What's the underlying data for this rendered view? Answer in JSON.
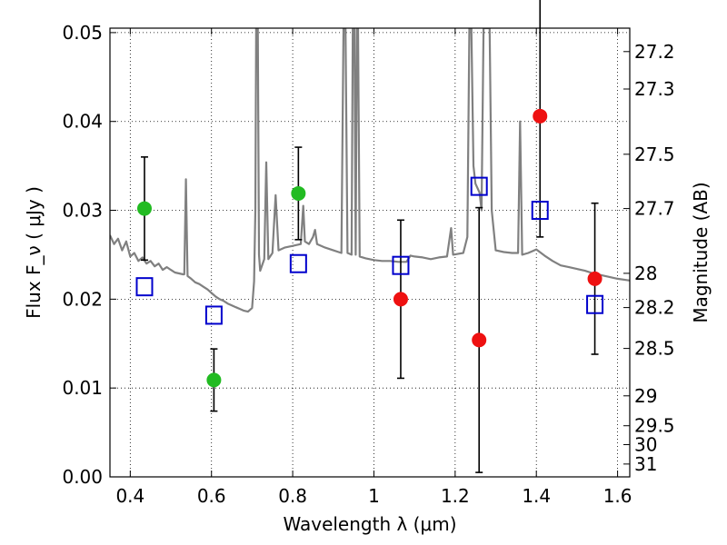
{
  "chart_data": {
    "type": "scatter",
    "title": "",
    "xlabel": "Wavelength  λ (μm)",
    "ylabel": "Flux  F_ν  ( μJy )",
    "y2label": "Magnitude (AB)",
    "xlim": [
      0.35,
      1.63
    ],
    "ylim": [
      0.0,
      0.0505
    ],
    "grid": true,
    "x_ticks": [
      0.4,
      0.6,
      0.8,
      1.0,
      1.2,
      1.4,
      1.6
    ],
    "x_tick_labels": [
      "0.4",
      "0.6",
      "0.8",
      "1",
      "1.2",
      "1.4",
      "1.6"
    ],
    "y_ticks": [
      0.0,
      0.01,
      0.02,
      0.03,
      0.04,
      0.05
    ],
    "y_tick_labels": [
      "0.00",
      "0.01",
      "0.02",
      "0.03",
      "0.04",
      "0.05"
    ],
    "magnitude_ticks": [
      27.2,
      27.3,
      27.5,
      27.7,
      28,
      28.2,
      28.5,
      29,
      29.5,
      30,
      31
    ],
    "magnitude_tick_labels": [
      "27.2",
      "27.3",
      "27.5",
      "27.7",
      "28",
      "28.2",
      "28.5",
      "29",
      "29.5",
      "30",
      "31"
    ],
    "series": [
      {
        "marker": "circle",
        "color": "#22bb22",
        "points": [
          {
            "x": 0.435,
            "y": 0.0302,
            "yerr": 0.0058
          },
          {
            "x": 0.606,
            "y": 0.0109,
            "yerr": 0.0035
          },
          {
            "x": 0.814,
            "y": 0.0319,
            "yerr": 0.0052
          }
        ]
      },
      {
        "marker": "circle",
        "color": "#ee1111",
        "points": [
          {
            "x": 1.066,
            "y": 0.02,
            "yerr": 0.0089
          },
          {
            "x": 1.259,
            "y": 0.0154,
            "yerr": 0.0149
          },
          {
            "x": 1.409,
            "y": 0.0406,
            "yerr": 0.0136
          },
          {
            "x": 1.544,
            "y": 0.0223,
            "yerr": 0.0085
          }
        ]
      },
      {
        "marker": "open-square",
        "color": "#0000cc",
        "points": [
          {
            "x": 0.435,
            "y": 0.0214
          },
          {
            "x": 0.606,
            "y": 0.0182
          },
          {
            "x": 0.814,
            "y": 0.024
          },
          {
            "x": 1.066,
            "y": 0.0238
          },
          {
            "x": 1.259,
            "y": 0.0327
          },
          {
            "x": 1.409,
            "y": 0.03
          },
          {
            "x": 1.544,
            "y": 0.0194
          }
        ]
      },
      {
        "marker": "line",
        "color": "#808080",
        "points": [
          {
            "x": 0.35,
            "y": 0.0272
          },
          {
            "x": 0.36,
            "y": 0.0262
          },
          {
            "x": 0.37,
            "y": 0.0268
          },
          {
            "x": 0.38,
            "y": 0.0255
          },
          {
            "x": 0.39,
            "y": 0.0265
          },
          {
            "x": 0.4,
            "y": 0.0248
          },
          {
            "x": 0.41,
            "y": 0.0252
          },
          {
            "x": 0.42,
            "y": 0.0243
          },
          {
            "x": 0.43,
            "y": 0.0247
          },
          {
            "x": 0.44,
            "y": 0.024
          },
          {
            "x": 0.45,
            "y": 0.0243
          },
          {
            "x": 0.46,
            "y": 0.0237
          },
          {
            "x": 0.47,
            "y": 0.024
          },
          {
            "x": 0.48,
            "y": 0.0233
          },
          {
            "x": 0.49,
            "y": 0.0236
          },
          {
            "x": 0.5,
            "y": 0.0233
          },
          {
            "x": 0.51,
            "y": 0.023
          },
          {
            "x": 0.52,
            "y": 0.0229
          },
          {
            "x": 0.53,
            "y": 0.0228
          },
          {
            "x": 0.533,
            "y": 0.0228
          },
          {
            "x": 0.537,
            "y": 0.0335
          },
          {
            "x": 0.541,
            "y": 0.0226
          },
          {
            "x": 0.55,
            "y": 0.0223
          },
          {
            "x": 0.56,
            "y": 0.0219
          },
          {
            "x": 0.57,
            "y": 0.0217
          },
          {
            "x": 0.58,
            "y": 0.0214
          },
          {
            "x": 0.59,
            "y": 0.0211
          },
          {
            "x": 0.6,
            "y": 0.0207
          },
          {
            "x": 0.61,
            "y": 0.0203
          },
          {
            "x": 0.62,
            "y": 0.02
          },
          {
            "x": 0.63,
            "y": 0.0198
          },
          {
            "x": 0.64,
            "y": 0.0195
          },
          {
            "x": 0.65,
            "y": 0.0193
          },
          {
            "x": 0.66,
            "y": 0.0191
          },
          {
            "x": 0.67,
            "y": 0.0189
          },
          {
            "x": 0.68,
            "y": 0.0187
          },
          {
            "x": 0.69,
            "y": 0.0186
          },
          {
            "x": 0.7,
            "y": 0.019
          },
          {
            "x": 0.705,
            "y": 0.022
          },
          {
            "x": 0.708,
            "y": 0.03
          },
          {
            "x": 0.71,
            "y": 0.0505
          },
          {
            "x": 0.714,
            "y": 0.0505
          },
          {
            "x": 0.717,
            "y": 0.025
          },
          {
            "x": 0.72,
            "y": 0.0232
          },
          {
            "x": 0.73,
            "y": 0.0245
          },
          {
            "x": 0.735,
            "y": 0.0354
          },
          {
            "x": 0.74,
            "y": 0.0245
          },
          {
            "x": 0.75,
            "y": 0.0252
          },
          {
            "x": 0.758,
            "y": 0.0317
          },
          {
            "x": 0.765,
            "y": 0.0255
          },
          {
            "x": 0.78,
            "y": 0.0258
          },
          {
            "x": 0.8,
            "y": 0.026
          },
          {
            "x": 0.82,
            "y": 0.0262
          },
          {
            "x": 0.826,
            "y": 0.0305
          },
          {
            "x": 0.83,
            "y": 0.0265
          },
          {
            "x": 0.84,
            "y": 0.0262
          },
          {
            "x": 0.85,
            "y": 0.027
          },
          {
            "x": 0.855,
            "y": 0.0278
          },
          {
            "x": 0.86,
            "y": 0.0262
          },
          {
            "x": 0.88,
            "y": 0.0258
          },
          {
            "x": 0.9,
            "y": 0.0255
          },
          {
            "x": 0.92,
            "y": 0.0252
          },
          {
            "x": 0.925,
            "y": 0.0505
          },
          {
            "x": 0.93,
            "y": 0.0505
          },
          {
            "x": 0.935,
            "y": 0.0252
          },
          {
            "x": 0.945,
            "y": 0.025
          },
          {
            "x": 0.948,
            "y": 0.0505
          },
          {
            "x": 0.952,
            "y": 0.0505
          },
          {
            "x": 0.955,
            "y": 0.025
          },
          {
            "x": 0.958,
            "y": 0.0505
          },
          {
            "x": 0.961,
            "y": 0.0505
          },
          {
            "x": 0.965,
            "y": 0.0248
          },
          {
            "x": 0.98,
            "y": 0.0246
          },
          {
            "x": 1.0,
            "y": 0.0244
          },
          {
            "x": 1.02,
            "y": 0.0243
          },
          {
            "x": 1.04,
            "y": 0.0243
          },
          {
            "x": 1.06,
            "y": 0.0242
          },
          {
            "x": 1.08,
            "y": 0.0242
          },
          {
            "x": 1.09,
            "y": 0.0249
          },
          {
            "x": 1.1,
            "y": 0.0248
          },
          {
            "x": 1.12,
            "y": 0.0247
          },
          {
            "x": 1.14,
            "y": 0.0245
          },
          {
            "x": 1.16,
            "y": 0.0247
          },
          {
            "x": 1.18,
            "y": 0.0248
          },
          {
            "x": 1.19,
            "y": 0.028
          },
          {
            "x": 1.195,
            "y": 0.025
          },
          {
            "x": 1.22,
            "y": 0.0252
          },
          {
            "x": 1.23,
            "y": 0.027
          },
          {
            "x": 1.235,
            "y": 0.0505
          },
          {
            "x": 1.24,
            "y": 0.0505
          },
          {
            "x": 1.245,
            "y": 0.035
          },
          {
            "x": 1.25,
            "y": 0.033
          },
          {
            "x": 1.26,
            "y": 0.032
          },
          {
            "x": 1.265,
            "y": 0.03
          },
          {
            "x": 1.27,
            "y": 0.0505
          },
          {
            "x": 1.275,
            "y": 0.0505
          },
          {
            "x": 1.28,
            "y": 0.0505
          },
          {
            "x": 1.285,
            "y": 0.0505
          },
          {
            "x": 1.29,
            "y": 0.03
          },
          {
            "x": 1.3,
            "y": 0.0255
          },
          {
            "x": 1.32,
            "y": 0.0253
          },
          {
            "x": 1.34,
            "y": 0.0252
          },
          {
            "x": 1.355,
            "y": 0.0252
          },
          {
            "x": 1.36,
            "y": 0.04
          },
          {
            "x": 1.365,
            "y": 0.025
          },
          {
            "x": 1.38,
            "y": 0.0252
          },
          {
            "x": 1.4,
            "y": 0.0256
          },
          {
            "x": 1.42,
            "y": 0.0249
          },
          {
            "x": 1.44,
            "y": 0.0243
          },
          {
            "x": 1.46,
            "y": 0.0238
          },
          {
            "x": 1.48,
            "y": 0.0236
          },
          {
            "x": 1.5,
            "y": 0.0234
          },
          {
            "x": 1.52,
            "y": 0.0232
          },
          {
            "x": 1.54,
            "y": 0.0229
          },
          {
            "x": 1.56,
            "y": 0.0227
          },
          {
            "x": 1.58,
            "y": 0.0225
          },
          {
            "x": 1.6,
            "y": 0.0223
          },
          {
            "x": 1.63,
            "y": 0.0221
          }
        ]
      }
    ]
  }
}
